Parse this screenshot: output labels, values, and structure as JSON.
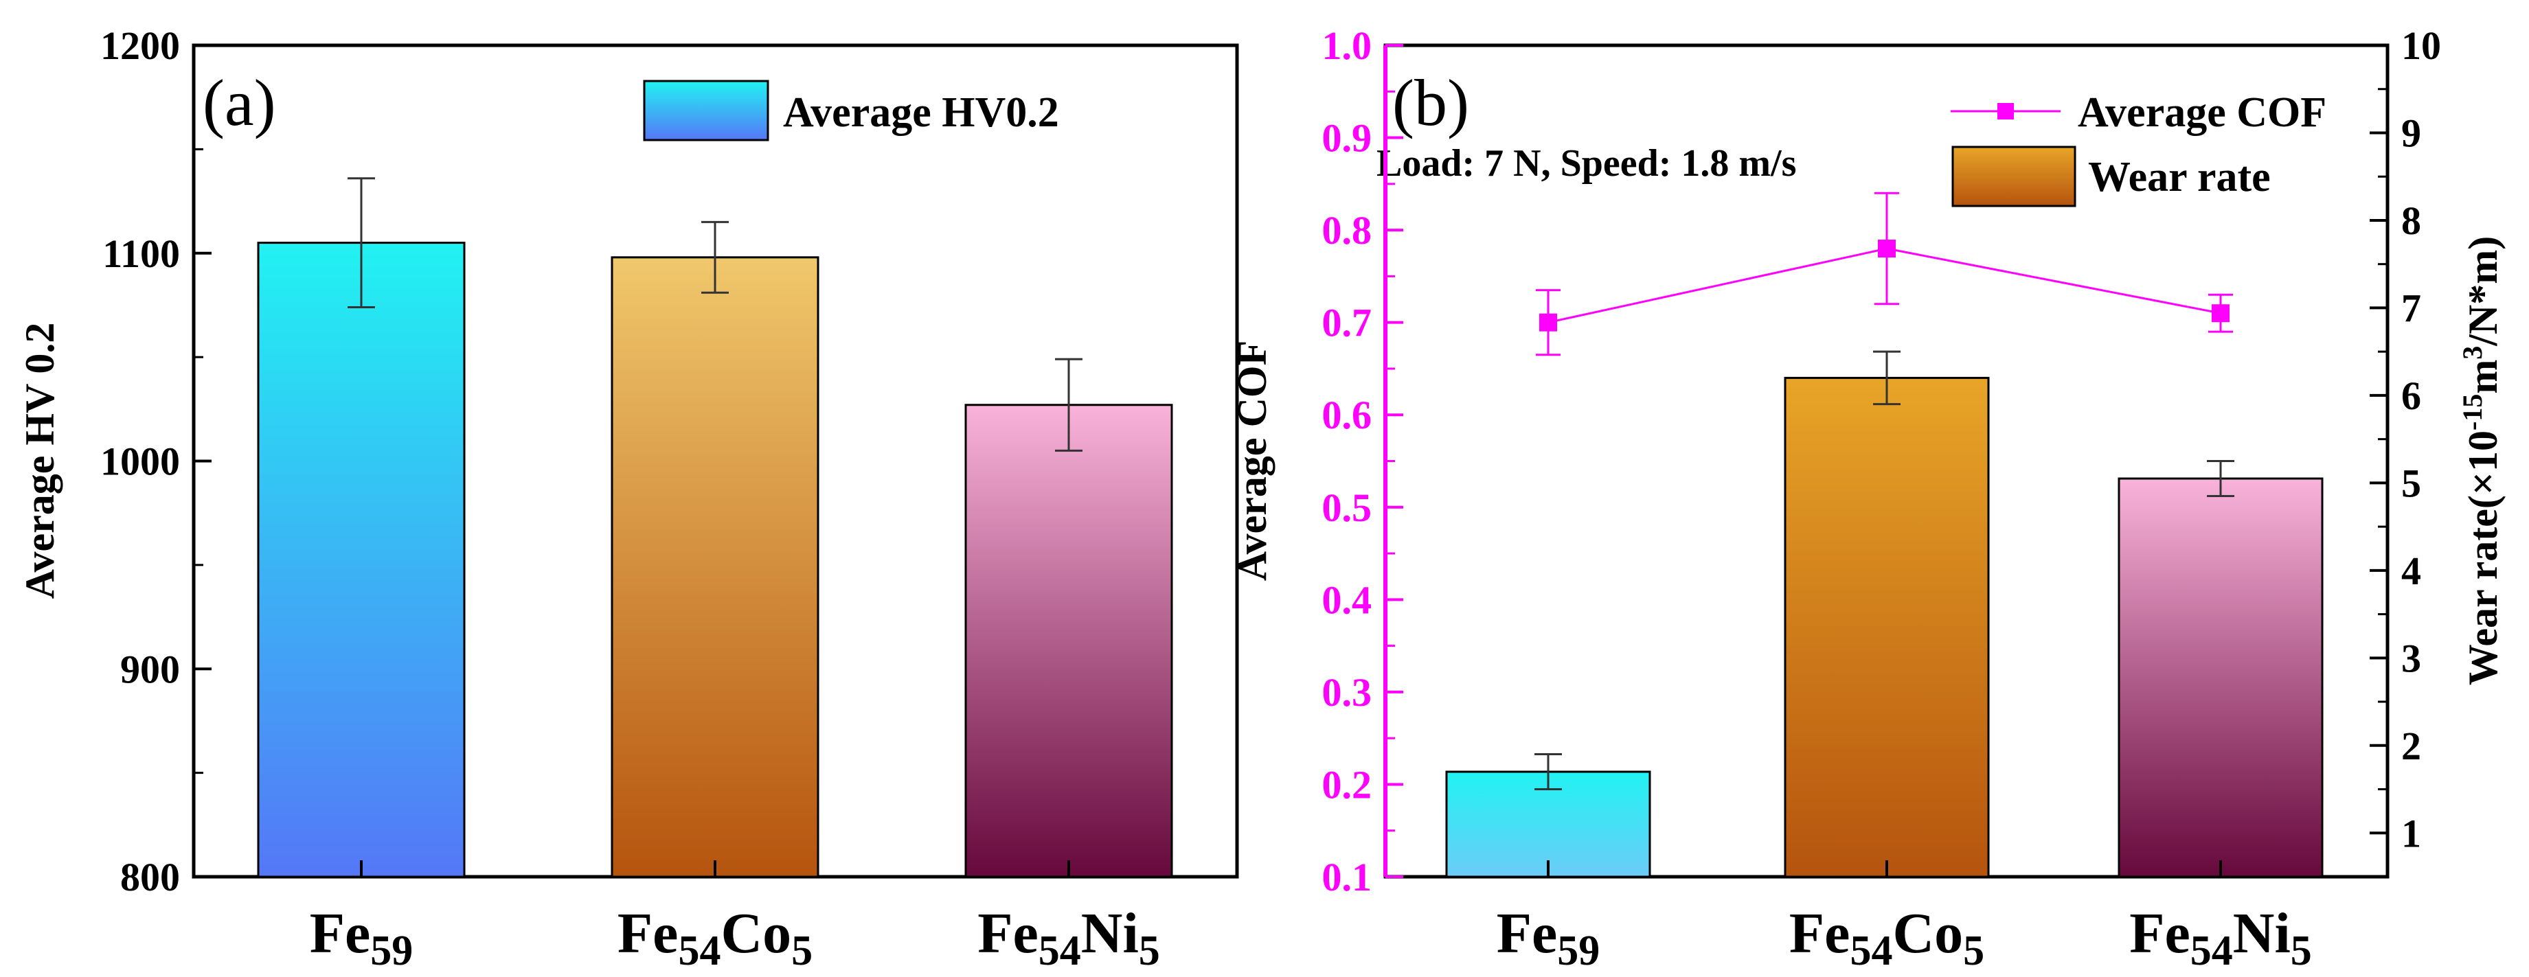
{
  "chart_data": [
    {
      "type": "bar",
      "panel_label": "(a)",
      "categories": [
        "Fe59",
        "Fe54Co5",
        "Fe54Ni5"
      ],
      "category_parts": [
        {
          "base": "Fe",
          "sub1": "59",
          "el2": "",
          "sub2": ""
        },
        {
          "base": "Fe",
          "sub1": "54",
          "el2": "Co",
          "sub2": "5"
        },
        {
          "base": "Fe",
          "sub1": "54",
          "el2": "Ni",
          "sub2": "5"
        }
      ],
      "values": [
        1105,
        1098,
        1027
      ],
      "errors": [
        31,
        17,
        22
      ],
      "ylabel": "Average HV 0.2",
      "ylim": [
        800,
        1200
      ],
      "yticks": [
        800,
        900,
        1000,
        1100,
        1200
      ],
      "legend": [
        "Average HV0.2"
      ],
      "legend_position": "top-right",
      "bar_colors": [
        {
          "top": "#21f2f2",
          "bottom": "#5577f7"
        },
        {
          "top": "#f0c86c",
          "bottom": "#b5540e"
        },
        {
          "top": "#f9b3da",
          "bottom": "#66083b"
        }
      ],
      "legend_gradient": {
        "top": "#21f2f2",
        "bottom": "#5577f7"
      }
    },
    {
      "type": "bar+line",
      "panel_label": "(b)",
      "categories": [
        "Fe59",
        "Fe54Co5",
        "Fe54Ni5"
      ],
      "category_parts": [
        {
          "base": "Fe",
          "sub1": "59",
          "el2": "",
          "sub2": ""
        },
        {
          "base": "Fe",
          "sub1": "54",
          "el2": "Co",
          "sub2": "5"
        },
        {
          "base": "Fe",
          "sub1": "54",
          "el2": "Ni",
          "sub2": "5"
        }
      ],
      "annotation": "Load: 7 N, Speed: 1.8 m/s",
      "series": [
        {
          "name": "Average COF",
          "type": "line",
          "axis": "left",
          "values": [
            0.7,
            0.78,
            0.71
          ],
          "errors": [
            0.035,
            0.06,
            0.02
          ],
          "color": "#ff00ff"
        },
        {
          "name": "Wear rate",
          "type": "bar",
          "axis": "right",
          "values": [
            1.7,
            6.2,
            5.05
          ],
          "errors": [
            0.2,
            0.3,
            0.2
          ],
          "bar_colors": [
            {
              "top": "#21f2f2",
              "bottom": "#6cccf7"
            },
            {
              "top": "#e8a528",
              "bottom": "#b5540e"
            },
            {
              "top": "#f9b3da",
              "bottom": "#66083b"
            }
          ]
        }
      ],
      "ylabel_left": "Average COF",
      "ylim_left": [
        0.1,
        1.0
      ],
      "yticks_left": [
        "0.1",
        "0.2",
        "0.3",
        "0.4",
        "0.5",
        "0.6",
        "0.7",
        "0.8",
        "0.9",
        "1.0"
      ],
      "ylabel_right": "Wear rate(×10",
      "ylabel_right_sup1": "-15",
      "ylabel_right_mid": "m",
      "ylabel_right_sup2": "3",
      "ylabel_right_end": "/N*m)",
      "ylim_right": [
        0.5,
        10
      ],
      "yticks_right": [
        1,
        2,
        3,
        4,
        5,
        6,
        7,
        8,
        9,
        10
      ],
      "legend": [
        "Average COF",
        "Wear rate"
      ],
      "legend_position": "top-right",
      "left_axis_color": "#ff00ff",
      "legend_gradient": {
        "top": "#e8a528",
        "bottom": "#b5540e"
      }
    }
  ]
}
